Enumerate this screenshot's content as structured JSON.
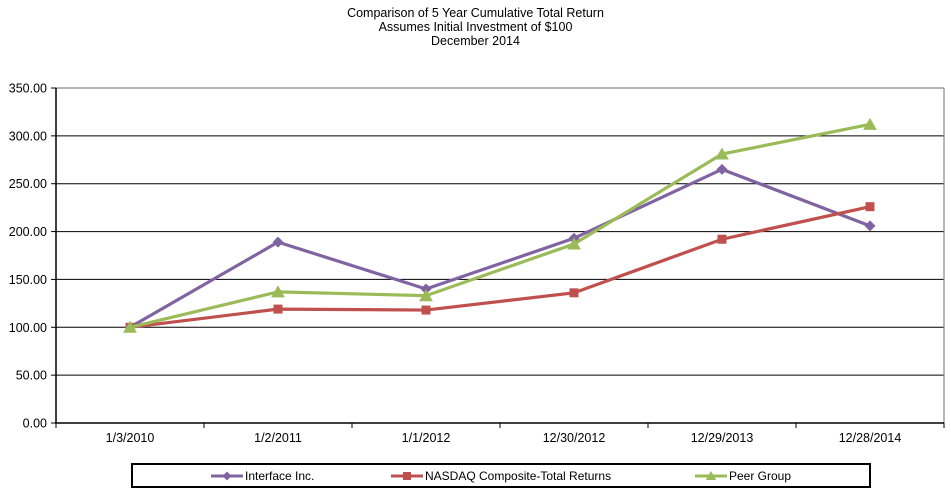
{
  "page": {
    "background": "#FFFFFF"
  },
  "chart_data": {
    "type": "line",
    "title_lines": [
      "Comparison of 5 Year Cumulative Total Return",
      "Assumes Initial Investment of $100",
      "December 2014"
    ],
    "xlabel": "",
    "ylabel": "",
    "x_categories": [
      "1/3/2010",
      "1/2/2011",
      "1/1/2012",
      "12/30/2012",
      "12/29/2013",
      "12/28/2014"
    ],
    "y_ticks": [
      "350.00",
      "300.00",
      "250.00",
      "200.00",
      "150.00",
      "100.00",
      "50.00",
      "0.00"
    ],
    "ylim": [
      0,
      350
    ],
    "y_tick_step": 50,
    "grid": "horizontal-black",
    "plot_border_color": "#888888",
    "axis_color": "#000000",
    "legend_position": "bottom-boxed",
    "series": [
      {
        "name": "Interface Inc.",
        "color": "#8064A2",
        "marker": "diamond",
        "values": [
          100,
          189,
          140,
          193,
          265,
          206
        ]
      },
      {
        "name": "NASDAQ Composite-Total Returns",
        "color": "#C0504D",
        "marker": "square",
        "values": [
          100,
          119,
          118,
          136,
          192,
          226
        ]
      },
      {
        "name": "Peer Group",
        "color": "#9BBB59",
        "marker": "triangle",
        "values": [
          100,
          137,
          133,
          187,
          281,
          312
        ]
      }
    ]
  }
}
